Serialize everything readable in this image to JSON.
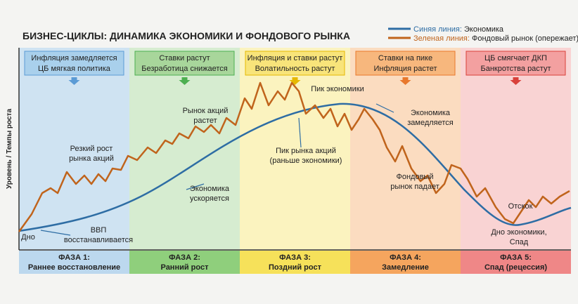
{
  "title": "БИЗНЕС-ЦИКЛЫ: ДИНАМИКА ЭКОНОМИКИ И ФОНДОВОГО РЫНКА",
  "y_axis_label": "Уровень / Темпы роста",
  "legend": [
    {
      "prefix": "Синяя линия:",
      "label": "Экономика",
      "color": "#2e6da4"
    },
    {
      "prefix": "Зеленая линия:",
      "label": "Фондовый рынок (опережает)",
      "color": "#c0641c"
    }
  ],
  "phases": [
    {
      "notes": [
        "Инфляция замедляется",
        "ЦБ мягкая политика"
      ],
      "name": "ФАЗА 1:",
      "subtitle": "Раннее восстановление"
    },
    {
      "notes": [
        "Ставки растут",
        "Безработица снижается"
      ],
      "name": "ФАЗА 2:",
      "subtitle": "Ранний рост"
    },
    {
      "notes": [
        "Инфляция и ставки растут",
        "Волатильность растут"
      ],
      "name": "ФАЗА 3:",
      "subtitle": "Поздний рост"
    },
    {
      "notes": [
        "Ставки на пике",
        "Инфляция растет"
      ],
      "name": "ФАЗА 4:",
      "subtitle": "Замедление"
    },
    {
      "notes": [
        "ЦБ смягчает ДКП",
        "Банкротства растут"
      ],
      "name": "ФАЗА 5:",
      "subtitle": "Спад (рецессия)"
    }
  ],
  "annotations": [
    [
      "Дно"
    ],
    [
      "ВВП",
      "восстанавливается"
    ],
    [
      "Резкий рост",
      "рынка акций"
    ],
    [
      "Рынок акций",
      "растет"
    ],
    [
      "Экономика",
      "ускоряется"
    ],
    [
      "Пик экономики"
    ],
    [
      "Пик рынка акций",
      "(раньше экономики)"
    ],
    [
      "Экономика",
      "замедляется"
    ],
    [
      "Фондовый",
      "рынок падает"
    ],
    [
      "Отскок"
    ],
    [
      "Дно экономики,",
      "Спад"
    ]
  ]
}
